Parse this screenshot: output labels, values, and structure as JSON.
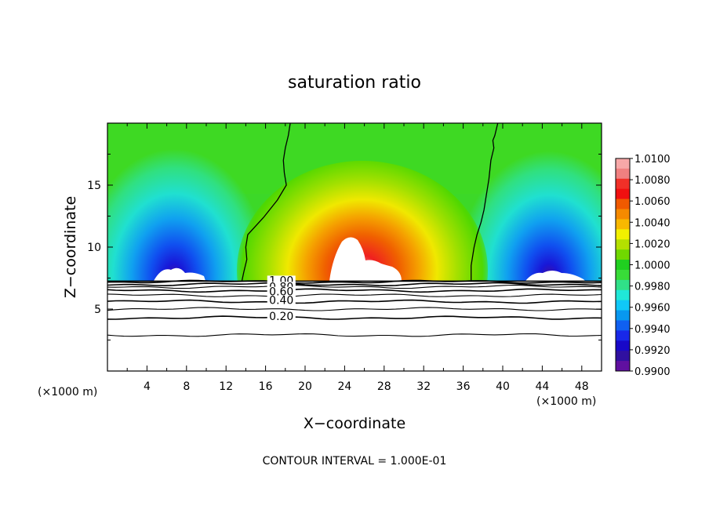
{
  "chart_data": {
    "type": "heatmap",
    "title": "saturation ratio",
    "xlabel": "X−coordinate",
    "ylabel": "Z−coordinate",
    "x_unit_left": "(×1000 m)",
    "x_unit_right": "(×1000 m)",
    "xlim": [
      0,
      50
    ],
    "ylim": [
      0,
      20
    ],
    "x_ticks": [
      4,
      8,
      12,
      16,
      20,
      24,
      28,
      32,
      36,
      40,
      44,
      48
    ],
    "x_tick_labels": [
      "4",
      "8",
      "12",
      "16",
      "20",
      "24",
      "28",
      "32",
      "36",
      "40",
      "44",
      "48"
    ],
    "y_ticks": [
      5,
      10,
      15
    ],
    "y_tick_labels": [
      "5",
      "10",
      "15"
    ],
    "footer": "CONTOUR INTERVAL = 1.000E-01",
    "colorbar": {
      "min": 0.99,
      "max": 1.01,
      "labels": [
        "1.0100",
        "1.0080",
        "1.0060",
        "1.0040",
        "1.0020",
        "1.0000",
        "0.9980",
        "0.9960",
        "0.9940",
        "0.9920",
        "0.9900"
      ],
      "colors": [
        "#f7a8a8",
        "#f08080",
        "#f03028",
        "#f01010",
        "#f05a00",
        "#f58a00",
        "#f8b800",
        "#f2f000",
        "#b4e000",
        "#70d800",
        "#20d020",
        "#38dc38",
        "#30e088",
        "#20e8d8",
        "#10c8f8",
        "#0898f0",
        "#1060f0",
        "#1828e8",
        "#1808c8",
        "#3010a0",
        "#6010a0"
      ]
    },
    "contour_labels": [
      "1.00",
      "0.80",
      "0.60",
      "0.40",
      "0.20"
    ],
    "contour_levels_below_cloud": [
      {
        "label": "",
        "z": 2.9
      },
      {
        "label": "0.20",
        "z": 4.3
      },
      {
        "label": "",
        "z": 5.0
      },
      {
        "label": "0.40",
        "z": 5.6
      },
      {
        "label": "",
        "z": 6.1
      },
      {
        "label": "0.60",
        "z": 6.5
      },
      {
        "label": "",
        "z": 6.8
      },
      {
        "label": "0.80",
        "z": 7.0
      },
      {
        "label": "1.00",
        "z": 7.2
      }
    ],
    "boundary_lines": [
      {
        "x": [
          18.5,
          18.3,
          18.0,
          17.8,
          17.9,
          18.1,
          17.2,
          15.8,
          14.2,
          14.0,
          14.1,
          13.8,
          13.6
        ],
        "z": [
          20,
          19,
          18,
          17,
          16,
          15,
          13.8,
          12.4,
          11.0,
          10,
          9,
          8,
          7.25
        ]
      },
      {
        "x": [
          39.5,
          39.2,
          39.0,
          39.1,
          38.8,
          38.6,
          38.3,
          38.1,
          37.8,
          37.4,
          37.1,
          36.8,
          36.8
        ],
        "z": [
          20,
          19,
          18.6,
          18.0,
          17.0,
          15.5,
          14.0,
          13.0,
          12.0,
          11.0,
          10.0,
          8.5,
          7.25
        ]
      }
    ]
  }
}
